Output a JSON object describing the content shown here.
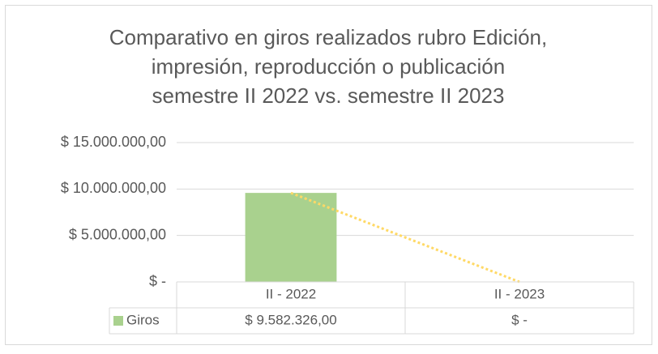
{
  "chart_data": {
    "type": "bar",
    "title_lines": [
      "Comparativo en giros realizados rubro Edición,",
      "impresión, reproducción o publicación",
      "semestre II 2022 vs. semestre II 2023"
    ],
    "categories": [
      "II - 2022",
      "II - 2023"
    ],
    "series": [
      {
        "name": "Giros",
        "color": "#a9d18e",
        "values": [
          9582326,
          0
        ],
        "value_labels": [
          "$ 9.582.326,00",
          "$ -"
        ]
      }
    ],
    "ylim": [
      0,
      15000000
    ],
    "yticks": [
      {
        "value": 0,
        "label": "$ -"
      },
      {
        "value": 5000000,
        "label": "$ 5.000.000,00"
      },
      {
        "value": 10000000,
        "label": "$ 10.000.000,00"
      },
      {
        "value": 15000000,
        "label": "$ 15.000.000,00"
      }
    ],
    "grid": true,
    "data_table": true,
    "trendline": {
      "type": "linear",
      "color": "#ffd966"
    }
  }
}
